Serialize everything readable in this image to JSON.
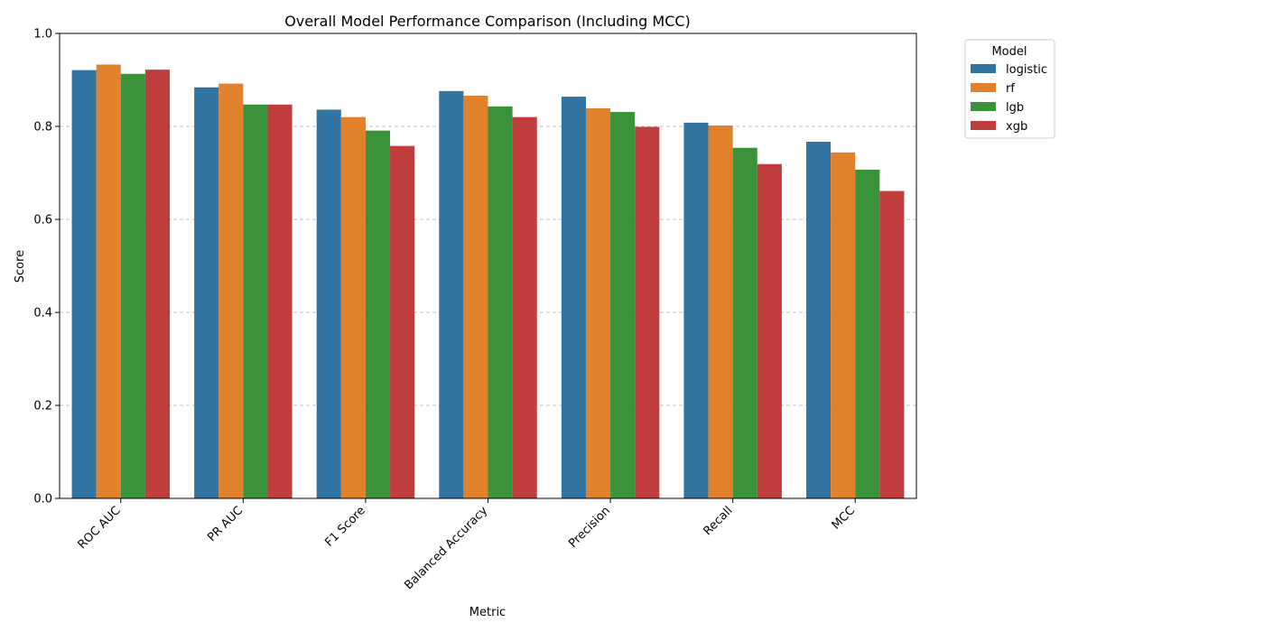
{
  "chart_data": {
    "type": "bar",
    "title": "Overall Model Performance Comparison (Including MCC)",
    "xlabel": "Metric",
    "ylabel": "Score",
    "ylim": [
      0,
      1.0
    ],
    "yticks": [
      0.0,
      0.2,
      0.4,
      0.6,
      0.8,
      1.0
    ],
    "ytick_labels": [
      "0.0",
      "0.2",
      "0.4",
      "0.6",
      "0.8",
      "1.0"
    ],
    "grid": "y-dashed",
    "legend_title": "Model",
    "legend_position": "outside-top-right",
    "categories": [
      "ROC AUC",
      "PR AUC",
      "F1 Score",
      "Balanced Accuracy",
      "Precision",
      "Recall",
      "MCC"
    ],
    "series": [
      {
        "name": "logistic",
        "color": "#3274a1",
        "values": [
          0.921,
          0.884,
          0.836,
          0.876,
          0.864,
          0.808,
          0.767
        ]
      },
      {
        "name": "rf",
        "color": "#e1812c",
        "values": [
          0.933,
          0.892,
          0.82,
          0.866,
          0.839,
          0.802,
          0.744
        ]
      },
      {
        "name": "lgb",
        "color": "#3a923a",
        "values": [
          0.913,
          0.847,
          0.791,
          0.843,
          0.831,
          0.754,
          0.707
        ]
      },
      {
        "name": "xgb",
        "color": "#c03d3e",
        "values": [
          0.922,
          0.847,
          0.758,
          0.82,
          0.799,
          0.719,
          0.661
        ]
      }
    ]
  }
}
